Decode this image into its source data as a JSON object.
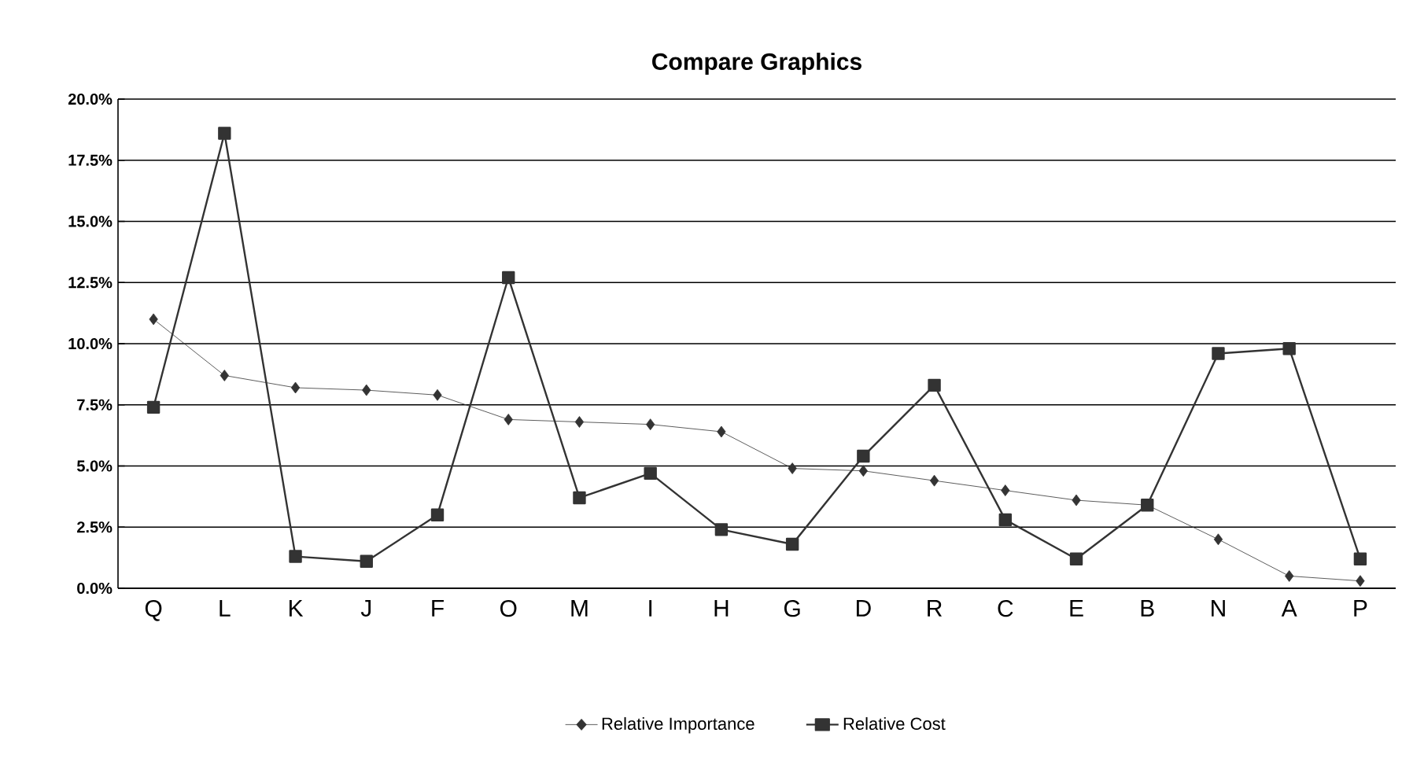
{
  "chart_data": {
    "type": "line",
    "title": "Compare Graphics",
    "categories": [
      "Q",
      "L",
      "K",
      "J",
      "F",
      "O",
      "M",
      "I",
      "H",
      "G",
      "D",
      "R",
      "C",
      "E",
      "B",
      "N",
      "A",
      "P"
    ],
    "series": [
      {
        "name": "Relative Importance",
        "color": "#333333",
        "marker": "diamond",
        "values": [
          11.0,
          8.7,
          8.2,
          8.1,
          7.9,
          6.9,
          6.8,
          6.7,
          6.4,
          4.9,
          4.8,
          4.4,
          4.0,
          3.6,
          3.4,
          2.0,
          0.5,
          0.3
        ]
      },
      {
        "name": "Relative Cost",
        "color": "#333333",
        "marker": "square",
        "values": [
          7.4,
          18.6,
          1.3,
          1.1,
          3.0,
          12.7,
          3.7,
          4.7,
          2.4,
          1.8,
          5.4,
          8.3,
          2.8,
          1.2,
          3.4,
          9.6,
          9.8,
          1.2
        ]
      }
    ],
    "ylim": [
      0,
      20
    ],
    "yticks": [
      {
        "value": 0,
        "label": "0.0%"
      },
      {
        "value": 2.5,
        "label": "2.5%"
      },
      {
        "value": 5,
        "label": "5.0%"
      },
      {
        "value": 7.5,
        "label": "7.5%"
      },
      {
        "value": 10,
        "label": "10.0%"
      },
      {
        "value": 12.5,
        "label": "12.5%"
      },
      {
        "value": 15,
        "label": "15.0%"
      },
      {
        "value": 17.5,
        "label": "17.5%"
      },
      {
        "value": 20,
        "label": "20.0%"
      }
    ],
    "grid": "y",
    "legend": "bottom"
  }
}
